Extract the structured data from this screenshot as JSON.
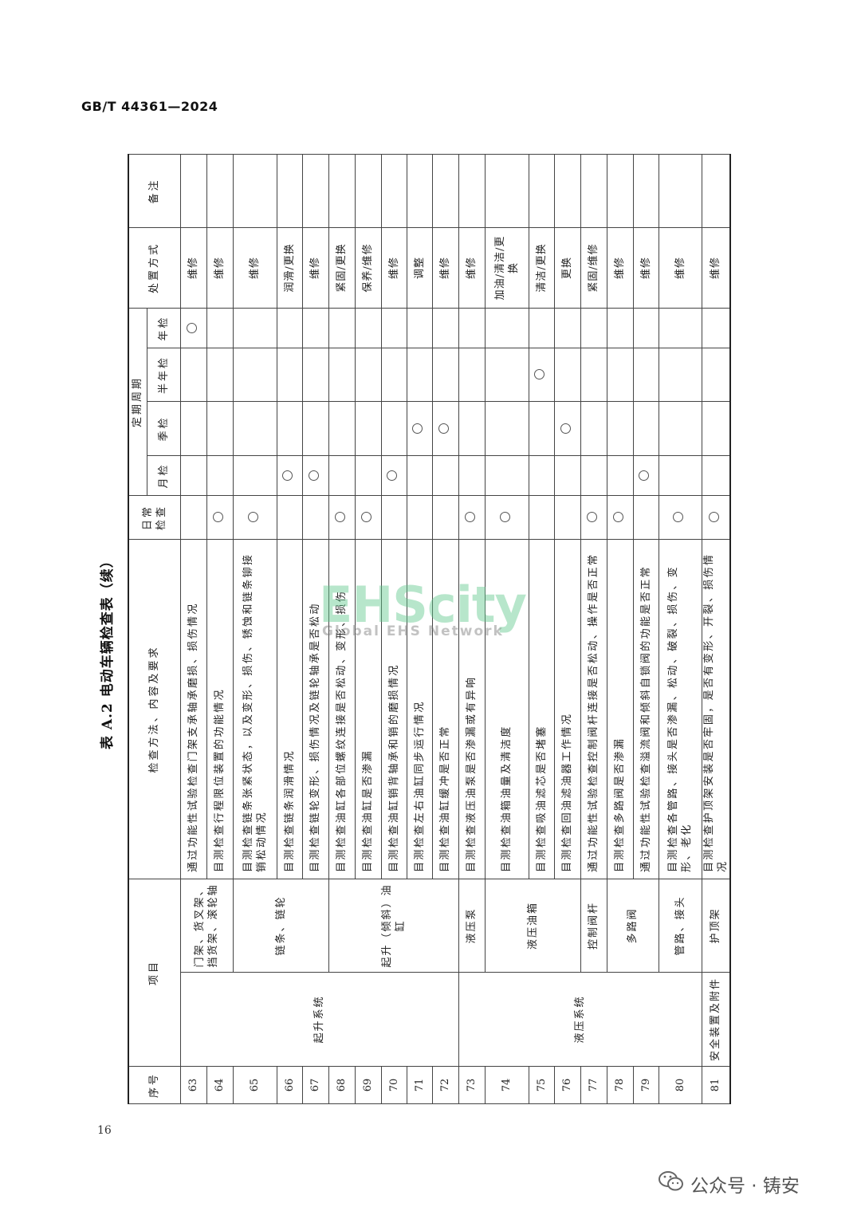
{
  "header": {
    "standard": "GB/T 44361—2024",
    "table_title": "表 A.2   电动车辆检查表（续）"
  },
  "columns": {
    "seq": "序号",
    "item": "项目",
    "method": "检查方法、内容及要求",
    "daily": "日常检查",
    "periodic": "定期周期",
    "monthly": "月检",
    "quarterly": "季检",
    "semiannual": "半年检",
    "annual": "年检",
    "action": "处置方式",
    "remark": "备注"
  },
  "categories": [
    {
      "name": "起升系统",
      "span": 10
    },
    {
      "name": "液压系统",
      "span": 8
    },
    {
      "name": "安全装置及附件",
      "span": 1
    }
  ],
  "subitems": [
    {
      "name": "门架、货叉架、挡货架、滚轮轴",
      "span": 2
    },
    {
      "name": "链条、链轮",
      "span": 3
    },
    {
      "name": "起升（倾斜）油缸",
      "span": 5
    },
    {
      "name": "液压泵",
      "span": 1
    },
    {
      "name": "液压油箱",
      "span": 3
    },
    {
      "name": "控制阀杆",
      "span": 1
    },
    {
      "name": "多路阀",
      "span": 2
    },
    {
      "name": "管路、接头",
      "span": 1
    },
    {
      "name": "护顶架",
      "span": 1
    }
  ],
  "rows": [
    {
      "no": "63",
      "method": "通过功能性试验检查门架支承轴承磨损、损伤情况",
      "check": "annual",
      "action": "维修"
    },
    {
      "no": "64",
      "method": "目测检查行程限位装置的功能情况",
      "check": "daily",
      "action": "维修"
    },
    {
      "no": "65",
      "method": "目测检查链条张紧状态，以及变形、损伤、锈蚀和链条铆接销松动情况",
      "check": "daily",
      "action": "维修"
    },
    {
      "no": "66",
      "method": "目测检查链条润滑情况",
      "check": "monthly",
      "action": "润滑/更换"
    },
    {
      "no": "67",
      "method": "目测检查链轮变形、损伤情况及链轮轴承是否松动",
      "check": "monthly",
      "action": "维修"
    },
    {
      "no": "68",
      "method": "目测检查油缸各部位螺纹连接是否松动、变形、损伤",
      "check": "daily",
      "action": "紧固/更换"
    },
    {
      "no": "69",
      "method": "目测检查油缸是否渗漏",
      "check": "daily",
      "action": "保养/维修"
    },
    {
      "no": "70",
      "method": "目测检查油缸销背轴承和销的磨损情况",
      "check": "monthly",
      "action": "维修"
    },
    {
      "no": "71",
      "method": "目测检查左右油缸同步运行情况",
      "check": "quarterly",
      "action": "调整"
    },
    {
      "no": "72",
      "method": "目测检查油缸缓冲是否正常",
      "check": "quarterly",
      "action": "维修"
    },
    {
      "no": "73",
      "method": "目测检查液压油泵是否渗漏或有异响",
      "check": "daily",
      "action": "维修"
    },
    {
      "no": "74",
      "method": "目测检查油箱油量及清洁度",
      "check": "daily",
      "action": "加油/清洁/更换"
    },
    {
      "no": "75",
      "method": "目测检查吸油滤芯是否堵塞",
      "check": "semiannual",
      "action": "清洁/更换"
    },
    {
      "no": "76",
      "method": "目测检查回油滤油器工作情况",
      "check": "quarterly",
      "action": "更换"
    },
    {
      "no": "77",
      "method": "通过功能性试验检查控制阀杆连接是否松动、操作是否正常",
      "check": "daily",
      "action": "紧固/维修"
    },
    {
      "no": "78",
      "method": "目测检查多路阀是否渗漏",
      "check": "daily",
      "action": "维修"
    },
    {
      "no": "79",
      "method": "通过功能性试验检查溢流阀和倾斜自锁阀的功能是否正常",
      "check": "monthly",
      "action": "维修"
    },
    {
      "no": "80",
      "method": "目测检查各管路、接头是否渗漏、松动、破裂、损伤、变形、老化",
      "check": "daily",
      "action": "维修"
    },
    {
      "no": "81",
      "method": "目测检查护顶架安装是否牢固，是否有变形、开裂、损伤情况",
      "check": "daily",
      "action": "维修"
    }
  ],
  "page_number": "16",
  "watermark": {
    "logo": "EHScity",
    "tagline": "Global EHS Network"
  },
  "footer_account": "公众号 · 铸安",
  "icons": {
    "check_mark": "circle",
    "footer": "wechat-icon"
  }
}
